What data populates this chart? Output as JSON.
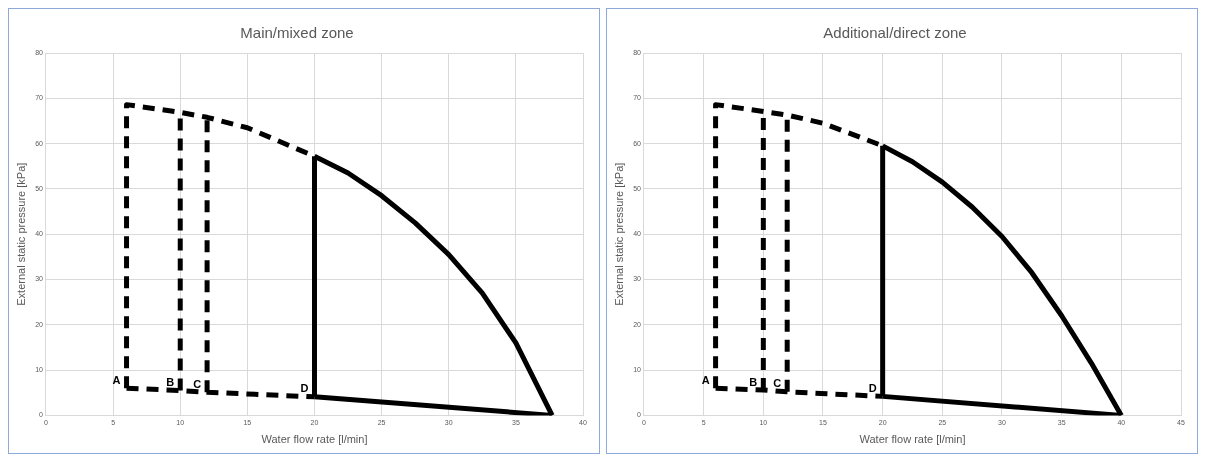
{
  "chart_data": [
    {
      "type": "line",
      "title": "Main/mixed zone",
      "xlabel": "Water flow rate [l/min]",
      "ylabel": "External static pressure [kPa]",
      "xlim": [
        0,
        40
      ],
      "xticks": [
        0,
        5,
        10,
        15,
        20,
        25,
        30,
        35,
        40
      ],
      "ylim": [
        0,
        80
      ],
      "yticks": [
        0,
        10,
        20,
        30,
        40,
        50,
        60,
        70,
        80
      ],
      "grid": true,
      "legend": false,
      "marker": "none",
      "series": [
        {
          "line_style": "dashed",
          "color": "#000000",
          "x": [
            6,
            6,
            10,
            12,
            15,
            20
          ],
          "values": [
            6.0,
            68.6,
            66.9,
            65.8,
            63.5,
            57.2
          ]
        },
        {
          "line_style": "dashed",
          "color": "#000000",
          "x": [
            6,
            10,
            12,
            20
          ],
          "values": [
            6.0,
            5.5,
            5.1,
            4.1
          ]
        },
        {
          "line_style": "dashed",
          "color": "#000000",
          "x": [
            10,
            10
          ],
          "values": [
            5.5,
            66.9
          ]
        },
        {
          "line_style": "dashed",
          "color": "#000000",
          "x": [
            12,
            12
          ],
          "values": [
            5.1,
            65.8
          ]
        },
        {
          "line_style": "solid",
          "color": "#000000",
          "x": [
            20,
            20
          ],
          "values": [
            4.1,
            57.2
          ]
        },
        {
          "line_style": "solid",
          "color": "#000000",
          "x": [
            20,
            22.5,
            25,
            27.5,
            30,
            32.5,
            35,
            37.7
          ],
          "values": [
            57.2,
            53.5,
            48.5,
            42.5,
            35.5,
            27,
            16,
            0
          ]
        },
        {
          "line_style": "solid",
          "color": "#000000",
          "x": [
            20,
            37.7
          ],
          "values": [
            4.1,
            0
          ]
        }
      ],
      "annotations": [
        {
          "text": "A",
          "x": 6,
          "y": 6.0
        },
        {
          "text": "B",
          "x": 10,
          "y": 5.5
        },
        {
          "text": "C",
          "x": 12,
          "y": 5.1
        },
        {
          "text": "D",
          "x": 20,
          "y": 4.1
        }
      ]
    },
    {
      "type": "line",
      "title": "Additional/direct zone",
      "xlabel": "Water flow rate [l/min]",
      "ylabel": "External static pressure [kPa]",
      "xlim": [
        0,
        45
      ],
      "xticks": [
        0,
        5,
        10,
        15,
        20,
        25,
        30,
        35,
        40,
        45
      ],
      "ylim": [
        0,
        80
      ],
      "yticks": [
        0,
        10,
        20,
        30,
        40,
        50,
        60,
        70,
        80
      ],
      "grid": true,
      "legend": false,
      "marker": "none",
      "series": [
        {
          "line_style": "dashed",
          "color": "#000000",
          "x": [
            6,
            6,
            10,
            12,
            15,
            20
          ],
          "values": [
            6.0,
            68.6,
            67.1,
            66.3,
            64.5,
            59.5
          ]
        },
        {
          "line_style": "dashed",
          "color": "#000000",
          "x": [
            6,
            10,
            12,
            20
          ],
          "values": [
            6.0,
            5.6,
            5.2,
            4.2
          ]
        },
        {
          "line_style": "dashed",
          "color": "#000000",
          "x": [
            10,
            10
          ],
          "values": [
            5.6,
            67.1
          ]
        },
        {
          "line_style": "dashed",
          "color": "#000000",
          "x": [
            12,
            12
          ],
          "values": [
            5.2,
            66.3
          ]
        },
        {
          "line_style": "solid",
          "color": "#000000",
          "x": [
            20,
            20
          ],
          "values": [
            4.2,
            59.5
          ]
        },
        {
          "line_style": "solid",
          "color": "#000000",
          "x": [
            20,
            22.5,
            25,
            27.5,
            30,
            32.5,
            35,
            37.5,
            40
          ],
          "values": [
            59.5,
            56,
            51.5,
            46,
            39.5,
            31.5,
            22,
            11.5,
            0
          ]
        },
        {
          "line_style": "solid",
          "color": "#000000",
          "x": [
            20,
            40
          ],
          "values": [
            4.2,
            0
          ]
        }
      ],
      "annotations": [
        {
          "text": "A",
          "x": 6,
          "y": 6.0
        },
        {
          "text": "B",
          "x": 10,
          "y": 5.6
        },
        {
          "text": "C",
          "x": 12,
          "y": 5.2
        },
        {
          "text": "D",
          "x": 20,
          "y": 4.2
        }
      ]
    }
  ]
}
